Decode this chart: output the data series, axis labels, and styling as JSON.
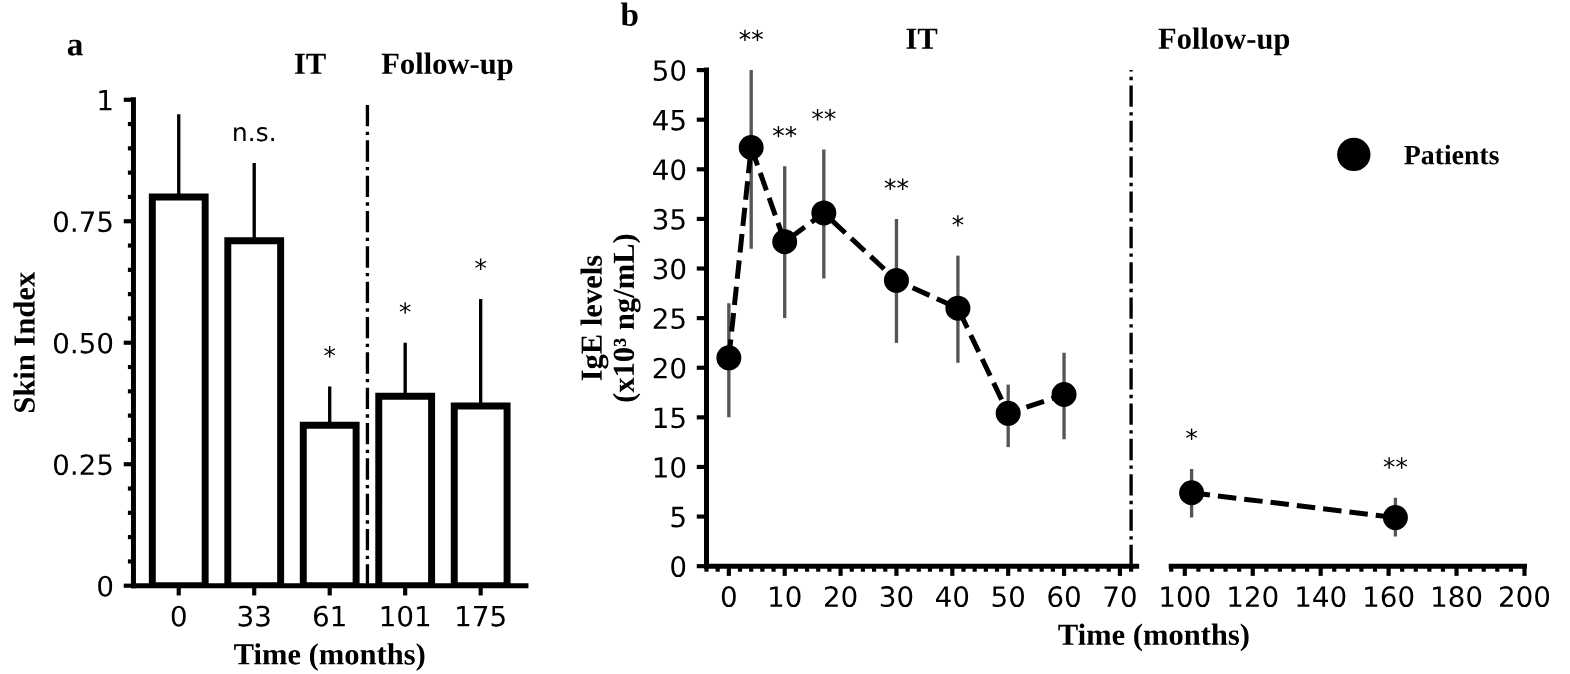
{
  "chart_data": [
    {
      "type": "bar",
      "title": "a",
      "xlabel": "Time (months)",
      "ylabel": "Skin Index",
      "categories": [
        "0",
        "33",
        "61",
        "101",
        "175"
      ],
      "series": [
        {
          "color": "#ffffff",
          "values": [
            0.8,
            0.71,
            0.33,
            0.39,
            0.37
          ],
          "errors": [
            [
              0.8,
              0.97
            ],
            [
              0.71,
              0.87
            ],
            [
              0.33,
              0.41
            ],
            [
              0.39,
              0.5
            ],
            [
              0.37,
              0.59
            ]
          ]
        }
      ],
      "ylim": [
        0,
        1
      ],
      "yticks": [
        0,
        {
          "value": 0.25,
          "label": "0.25"
        },
        {
          "value": 0.5,
          "label": "0.50"
        },
        {
          "value": 0.75,
          "label": "0.75"
        },
        1
      ],
      "annotations": [
        {
          "text": "n.s.",
          "x": "33",
          "y": 0.87
        },
        {
          "text": "*",
          "x": "61",
          "y": 0.41
        },
        {
          "text": "*",
          "x": "101",
          "y": 0.5
        },
        {
          "text": "*",
          "x": "175",
          "y": 0.59
        },
        "IT",
        "Follow-up"
      ],
      "grid": false,
      "legend": false
    },
    {
      "type": "line",
      "title": "b",
      "xlabel": "Time (months)",
      "ylabel": "IgE levels\n(x10³ ng/mL)",
      "series": [
        {
          "color": "#000000",
          "x": [
            0,
            4,
            10,
            17,
            30,
            41,
            50,
            60
          ],
          "values": [
            21,
            42.2,
            32.7,
            35.6,
            28.8,
            26,
            15.4,
            17.3
          ],
          "errors": [
            [
              15,
              26.5
            ],
            [
              32,
              50
            ],
            [
              25,
              40.3
            ],
            [
              29,
              42
            ],
            [
              22.5,
              35
            ],
            [
              20.5,
              31.3
            ],
            [
              12,
              18.3
            ],
            [
              12.8,
              21.5
            ]
          ]
        }
      ],
      "xlim": [
        -4,
        73
      ],
      "xticks": [
        0,
        10,
        20,
        30,
        40,
        50,
        60,
        70
      ],
      "ylim": [
        0,
        50
      ],
      "yticks": [
        0,
        5,
        10,
        15,
        20,
        25,
        30,
        35,
        40,
        45,
        50
      ],
      "ref_lines": [
        {
          "axis": "x",
          "value": 72,
          "line_style": "dashdot",
          "color": "#000000"
        }
      ],
      "annotations": [
        {
          "text": "**",
          "x": 4,
          "y": 50
        },
        {
          "text": "**",
          "x": 10,
          "y": 40.3
        },
        {
          "text": "**",
          "x": 17,
          "y": 42
        },
        {
          "text": "**",
          "x": 30,
          "y": 35
        },
        {
          "text": "*",
          "x": 41,
          "y": 31.3
        },
        "IT"
      ],
      "marker": "circle",
      "line_style": "dashed",
      "grid": false,
      "legend": false
    },
    {
      "type": "line",
      "series": [
        {
          "name": "Patients",
          "color": "#000000",
          "x": [
            102,
            162
          ],
          "values": [
            7.4,
            4.9
          ],
          "errors": [
            [
              4.9,
              9.8
            ],
            [
              3.0,
              6.9
            ]
          ]
        }
      ],
      "xlim": [
        96,
        200
      ],
      "xticks": [
        100,
        120,
        140,
        160,
        180,
        200
      ],
      "ylim": [
        0,
        50
      ],
      "tick_labels": "x",
      "annotations": [
        {
          "text": "*",
          "x": 102,
          "y": 9.8
        },
        {
          "text": "**",
          "x": 162,
          "y": 6.9
        },
        "Follow-up"
      ],
      "marker": "circle",
      "line_style": "dashed",
      "grid": false,
      "legend": "top right"
    }
  ]
}
